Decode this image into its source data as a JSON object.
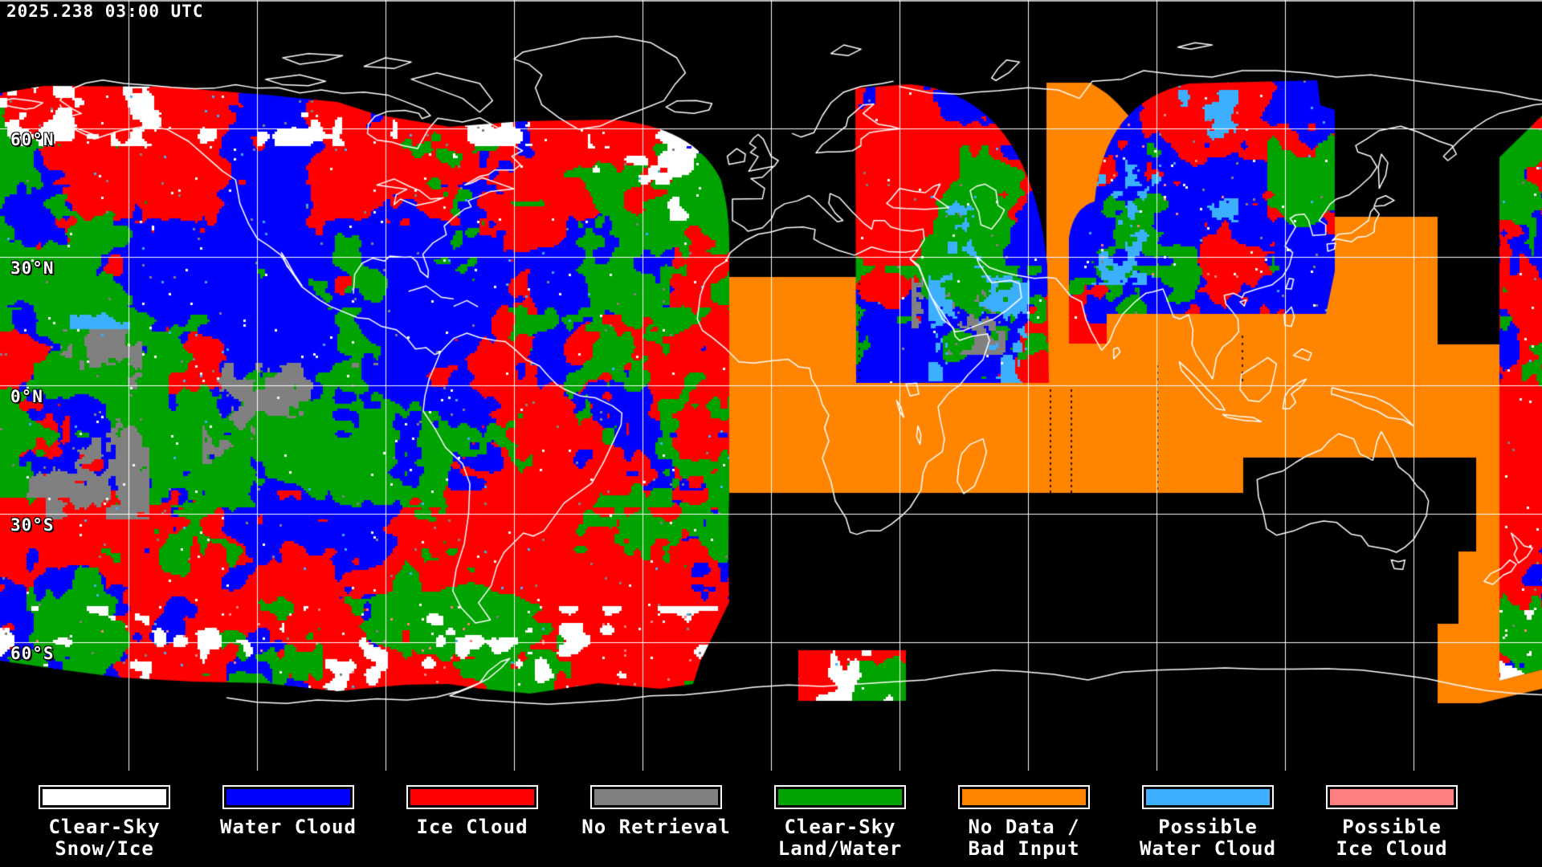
{
  "header": {
    "timestamp": "2025.238 03:00 UTC"
  },
  "map": {
    "latitude_labels": [
      {
        "text": "60°N"
      },
      {
        "text": "30°N"
      },
      {
        "text": "0°N"
      },
      {
        "text": "30°S"
      },
      {
        "text": "60°S"
      }
    ]
  },
  "classes": {
    "clear_sky_snow_ice": "#ffffff",
    "water_cloud": "#0000ff",
    "ice_cloud": "#ff0000",
    "no_retrieval": "#808080",
    "clear_sky_land_water": "#00a300",
    "no_data_bad_input": "#ff8400",
    "possible_water_cloud": "#3dafff",
    "possible_ice_cloud": "#ff8080",
    "background": "#000000",
    "gridline": "#ffffff",
    "coastline": "#ffffff",
    "top_border": "#b4b4b4"
  },
  "legend": {
    "items": [
      {
        "name": "clear-sky-snow-ice",
        "line1": "Clear-Sky",
        "line2": "Snow/Ice",
        "color": "#ffffff"
      },
      {
        "name": "water-cloud",
        "line1": "Water Cloud",
        "line2": "",
        "color": "#0000ff"
      },
      {
        "name": "ice-cloud",
        "line1": "Ice Cloud",
        "line2": "",
        "color": "#ff0000"
      },
      {
        "name": "no-retrieval",
        "line1": "No Retrieval",
        "line2": "",
        "color": "#808080"
      },
      {
        "name": "clear-sky-land-water",
        "line1": "Clear-Sky",
        "line2": "Land/Water",
        "color": "#00a300"
      },
      {
        "name": "no-data-bad-input",
        "line1": "No Data /",
        "line2": "Bad Input",
        "color": "#ff8400"
      },
      {
        "name": "possible-water-cloud",
        "line1": "Possible",
        "line2": "Water Cloud",
        "color": "#3dafff"
      },
      {
        "name": "possible-ice-cloud",
        "line1": "Possible",
        "line2": "Ice Cloud",
        "color": "#ff8080"
      }
    ]
  }
}
